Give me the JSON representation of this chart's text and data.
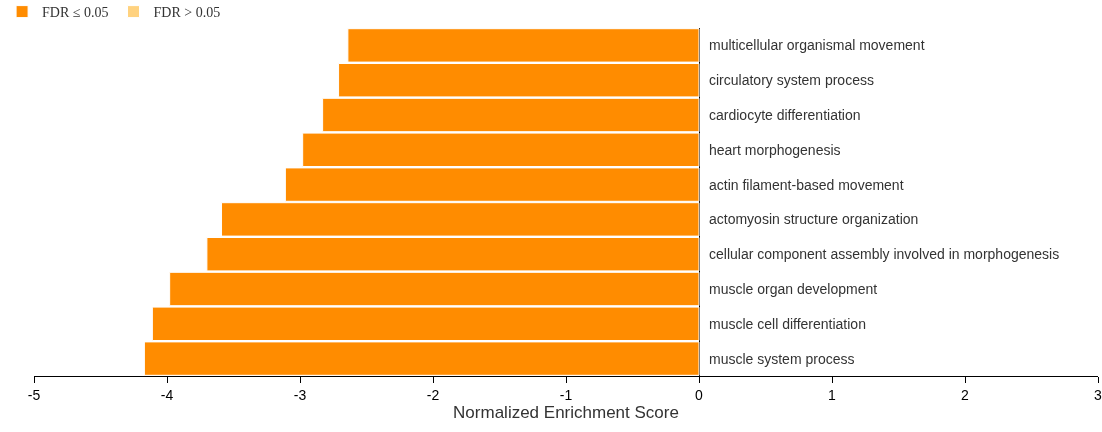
{
  "chart_data": {
    "type": "bar",
    "orientation": "horizontal",
    "categories": [
      "multicellular organismal movement",
      "circulatory system process",
      "cardiocyte differentiation",
      "heart morphogenesis",
      "actin filament-based movement",
      "actomyosin structure organization",
      "cellular component assembly involved in morphogenesis",
      "muscle organ development",
      "muscle cell differentiation",
      "muscle system process"
    ],
    "series": [
      {
        "name": "FDR ≤ 0.05",
        "color": "#ff8c00",
        "values": [
          -2.64,
          -2.71,
          -2.83,
          -2.98,
          -3.11,
          -3.59,
          -3.7,
          -3.98,
          -4.11,
          -4.17
        ]
      },
      {
        "name": "FDR > 0.05",
        "color": "#ffd27f",
        "values": [
          null,
          null,
          null,
          null,
          null,
          null,
          null,
          null,
          null,
          null
        ]
      }
    ],
    "xlabel": "Normalized Enrichment Score",
    "xlim": [
      -5,
      3
    ],
    "xticks": [
      -5,
      -4,
      -3,
      -2,
      -1,
      0,
      1,
      2,
      3
    ],
    "legend": "top left"
  }
}
